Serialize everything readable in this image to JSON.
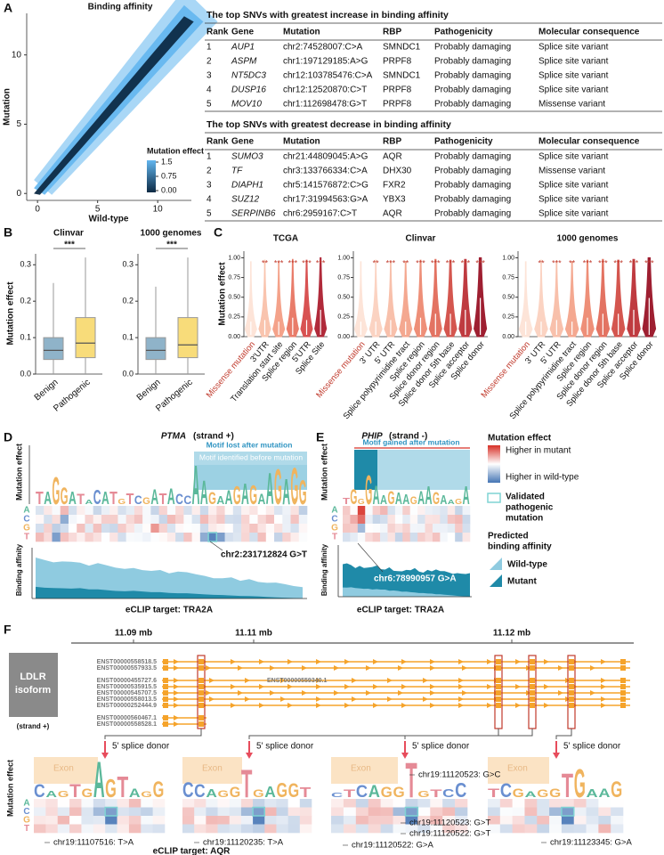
{
  "panel_labels": [
    "A",
    "B",
    "C",
    "D",
    "E",
    "F"
  ],
  "base_colors": {
    "A": "#5bb89a",
    "C": "#6a8fd0",
    "G": "#f0b45e",
    "T": "#e58a96"
  },
  "chart_data": [
    {
      "type": "scatter",
      "title": "Binding affinity",
      "x_label": "Wild-type",
      "y_label": "Mutation",
      "xlim": [
        -0.9,
        12.8
      ],
      "ylim": [
        -0.5,
        13
      ],
      "xticks": [
        0,
        5,
        10
      ],
      "yticks": [
        0,
        5,
        10
      ],
      "legend_title": "Mutation effect",
      "legend_ticks": [
        1.5,
        0.75,
        {
          "value": 0,
          "label": "0.00"
        }
      ],
      "colors": [
        "#0d2a44",
        "#62b6ef"
      ]
    },
    {
      "type": "box",
      "title": "Clinvar",
      "y_label": "Mutation effect",
      "categories": [
        "Benign",
        "Pathogenic"
      ],
      "boxes": [
        {
          "min": 0,
          "q1": 0.04,
          "median": 0.065,
          "q3": 0.1,
          "max": 0.25
        },
        {
          "min": 0,
          "q1": 0.045,
          "median": 0.085,
          "q3": 0.155,
          "max": 0.32
        }
      ],
      "colors": [
        "#8fb3c9",
        "#f8dc7a"
      ],
      "ylim": [
        0,
        0.33
      ],
      "yticks": [
        {
          "value": 0,
          "label": "0.0"
        },
        0.1,
        0.2,
        0.3
      ],
      "significance": "***"
    },
    {
      "type": "box",
      "title": "1000 genomes",
      "categories": [
        "Benign",
        "Pathogenic"
      ],
      "boxes": [
        {
          "min": 0,
          "q1": 0.04,
          "median": 0.065,
          "q3": 0.1,
          "max": 0.24
        },
        {
          "min": 0,
          "q1": 0.045,
          "median": 0.08,
          "q3": 0.155,
          "max": 0.32
        }
      ],
      "colors": [
        "#8fb3c9",
        "#f8dc7a"
      ],
      "ylim": [
        0,
        0.33
      ],
      "yticks": [
        {
          "value": 0,
          "label": "0.0"
        },
        0.1,
        0.2,
        0.3
      ],
      "significance": "***"
    },
    {
      "type": "violin",
      "title": "TCGA",
      "y_label": "Mutation effect",
      "categories": [
        "Missense mutation",
        "3'UTR",
        "Translation start site",
        "Splice region",
        "5'UTR",
        "Splice Site"
      ],
      "values": [
        0.95,
        0.97,
        0.95,
        0.98,
        0.97,
        1.0
      ],
      "medians": [
        0.1,
        0.12,
        0.1,
        0.15,
        0.12,
        0.25
      ],
      "significance": [
        null,
        "**",
        "***",
        "***",
        "***",
        "***"
      ],
      "colors": [
        "#fde4d8",
        "#f9c4ae",
        "#f4a28a",
        "#e97c6a",
        "#d85252",
        "#b02a3a"
      ],
      "highlight_color": "#c0392b",
      "ylim": [
        0,
        1.05
      ],
      "yticks": [
        {
          "value": 0,
          "label": "0.00"
        },
        0.25,
        {
          "value": 0.5,
          "label": "0.50"
        },
        0.75,
        {
          "value": 1,
          "label": "1.00"
        }
      ]
    },
    {
      "type": "violin",
      "title": "Clinvar",
      "categories": [
        "Missense mutation",
        "3' UTR",
        "5' UTR",
        "Splice polypyrimidine tract",
        "Splice region",
        "Splice donor region",
        "Splice donor 5th base",
        "Splice acceptor",
        "Splice donor"
      ],
      "values": [
        0.95,
        0.97,
        0.96,
        0.95,
        0.97,
        0.98,
        0.97,
        0.98,
        1.0
      ],
      "medians": [
        0.1,
        0.1,
        0.12,
        0.1,
        0.15,
        0.2,
        0.2,
        0.25,
        0.4
      ],
      "significance": [
        null,
        "**",
        "***",
        "**",
        "***",
        "***",
        "***",
        "***",
        "***"
      ],
      "colors": [
        "#fde4d8",
        "#fbd3c2",
        "#f8c0ab",
        "#f4a890",
        "#ee8f78",
        "#e37362",
        "#d4564f",
        "#bf3b40",
        "#9e1f31"
      ],
      "highlight_color": "#c0392b",
      "ylim": [
        0,
        1.05
      ],
      "yticks": [
        {
          "value": 0,
          "label": "0.00"
        },
        0.25,
        {
          "value": 0.5,
          "label": "0.50"
        },
        0.75,
        {
          "value": 1,
          "label": "1.00"
        }
      ]
    },
    {
      "type": "violin",
      "title": "1000 genomes",
      "categories": [
        "Missense mutation",
        "3' UTR",
        "5' UTR",
        "Splice polypyrimidine tract",
        "Splice region",
        "Splice donor region",
        "Splice donor 5th base",
        "Splice acceptor",
        "Splice donor"
      ],
      "values": [
        0.95,
        0.97,
        0.96,
        0.95,
        0.97,
        0.98,
        0.97,
        0.98,
        1.0
      ],
      "medians": [
        0.1,
        0.1,
        0.12,
        0.1,
        0.15,
        0.2,
        0.2,
        0.25,
        0.4
      ],
      "significance": [
        null,
        "**",
        "***",
        "**",
        "***",
        "***",
        "***",
        "***",
        "***"
      ],
      "colors": [
        "#fde4d8",
        "#fbd3c2",
        "#f8c0ab",
        "#f4a890",
        "#ee8f78",
        "#e37362",
        "#d4564f",
        "#bf3b40",
        "#9e1f31"
      ],
      "highlight_color": "#c0392b",
      "ylim": [
        0,
        1.05
      ],
      "yticks": [
        {
          "value": 0,
          "label": "0.00"
        },
        0.25,
        {
          "value": 0.5,
          "label": "0.50"
        },
        0.75,
        {
          "value": 1,
          "label": "1.00"
        }
      ]
    }
  ],
  "tables": [
    {
      "title": "The top SNVs with greatest increase in binding affinity",
      "columns": [
        "Rank",
        "Gene",
        "Mutation",
        "RBP",
        "Pathogenicity",
        "Molecular consequence"
      ],
      "rows": [
        [
          1,
          "AUP1",
          "chr2:74528007:C>A",
          "SMNDC1",
          "Probably damaging",
          "Splice site variant"
        ],
        [
          2,
          "ASPM",
          "chr1:197129185:A>G",
          "PRPF8",
          "Probably damaging",
          "Splice site variant"
        ],
        [
          3,
          "NT5DC3",
          "chr12:103785476:C>A",
          "SMNDC1",
          "Probably damaging",
          "Splice site variant"
        ],
        [
          4,
          "DUSP16",
          "chr12:12520870:C>T",
          "PRPF8",
          "Probably damaging",
          "Splice site variant"
        ],
        [
          5,
          "MOV10",
          "chr1:112698478:G>T",
          "PRPF8",
          "Probably damaging",
          "Missense variant"
        ]
      ]
    },
    {
      "title": "The top SNVs with greatest decrease in binding affinity",
      "columns": [
        "Rank",
        "Gene",
        "Mutation",
        "RBP",
        "Pathogenicity",
        "Molecular consequence"
      ],
      "rows": [
        [
          1,
          "SUMO3",
          "chr21:44809045:A>G",
          "AQR",
          "Probably damaging",
          "Splice site variant"
        ],
        [
          2,
          "TF",
          "chr3:133766334:C>A",
          "DHX30",
          "Probably damaging",
          "Missense variant"
        ],
        [
          3,
          "DIAPH1",
          "chr5:141576872:C>G",
          "FXR2",
          "Probably damaging",
          "Splice site variant"
        ],
        [
          4,
          "SUZ12",
          "chr17:31994563:G>A",
          "YBX3",
          "Probably damaging",
          "Splice site variant"
        ],
        [
          5,
          "SERPINB6",
          "chr6:2959167:C>T",
          "AQR",
          "Probably damaging",
          "Splice site variant"
        ]
      ]
    }
  ],
  "panel_d": {
    "gene": "PTMA",
    "strand": "(strand +)",
    "y_label": "Mutation effect",
    "bases": [
      "A",
      "C",
      "G",
      "T"
    ],
    "logo": [
      "T",
      "A",
      "G",
      "G",
      "A",
      "T",
      "A",
      "C",
      "A",
      "T",
      "G",
      "T",
      "C",
      "G",
      "A",
      "T",
      "A",
      "C",
      "C",
      "A",
      "A",
      "G",
      "A",
      "A",
      "G",
      "A",
      "G",
      "A",
      "A",
      "G",
      "A",
      "G",
      "G"
    ],
    "motif_lost": "Motif lost after mutation",
    "motif_before": "Motif identified before mutation",
    "mutation": "chr2:231712824 G>T",
    "affinity_label": "Binding affinity",
    "eclip": "eCLIP target: TRA2A"
  },
  "panel_e": {
    "gene": "PHIP",
    "strand": "(strand -)",
    "y_label": "Mutation effect",
    "bases": [
      "A",
      "C",
      "G",
      "T"
    ],
    "logo": [
      "T",
      "G",
      "G",
      "G",
      "A",
      "A",
      "G",
      "A",
      "A",
      "G",
      "A",
      "A",
      "G",
      "A",
      "A",
      "G",
      "A"
    ],
    "motif_gained": "Motif gained after mutation",
    "mutation": "chr6:78990957 G>A",
    "affinity_label": "Binding affinity",
    "eclip": "eCLIP target: TRA2A"
  },
  "legend": {
    "title": "Mutation effect",
    "high_mutant": "Higher in mutant",
    "high_wild": "Higher in wild-type",
    "validated": [
      "Validated",
      "pathogenic",
      "mutation"
    ],
    "predicted": [
      "Predicted",
      "binding affinity"
    ],
    "wild_type": "Wild-type",
    "mutant": "Mutant",
    "colors": [
      "#d73027",
      "#ffffff",
      "#4575b4",
      "#8fcbe0",
      "#1f8aa8",
      "#7fd3d3"
    ]
  },
  "panel_f": {
    "coords": [
      "11.09 mb",
      "11.11 mb",
      "11.12 mb"
    ],
    "gene_box": [
      "LDLR",
      "isoform"
    ],
    "strand": "(strand +)",
    "transcripts": [
      "ENST00000558518.5",
      "ENST00000557933.5",
      "ENST00000455727.6",
      "ENST00000535915.5",
      "ENST00000545707.5",
      "ENST00000558013.5",
      "ENST00000252444.9",
      "ENST00000560467.1",
      "ENST00000558528.1"
    ],
    "main_transcript": "ENST00000559340.1",
    "site_label": "5' splice donor",
    "exon_label": "Exon",
    "y_label": "Mutation effect",
    "bases": [
      "A",
      "C",
      "G",
      "T"
    ],
    "logos": [
      [
        "C",
        "A",
        "G",
        "T",
        "G",
        "A",
        "G",
        "T",
        "A",
        "G",
        "G"
      ],
      [
        "C",
        "C",
        "A",
        "G",
        "G",
        "T",
        "G",
        "A",
        "G",
        "G",
        "T"
      ],
      [
        "C",
        "T",
        "C",
        "A",
        "G",
        "G",
        "T",
        "G",
        "T",
        "C",
        "C"
      ],
      [
        "T",
        "C",
        "G",
        "A",
        "G",
        "G",
        "T",
        "G",
        "A",
        "A",
        "G"
      ]
    ],
    "mutations": [
      "chr19:11107516: T>A",
      "chr19:11120235: T>A",
      "chr19:11120523: G>C",
      "chr19:11120523: G>T",
      "chr19:11120522: G>T",
      "chr19:11120522: G>A",
      "chr19:11123345: G>A"
    ],
    "eclip": "eCLIP target: AQR"
  }
}
